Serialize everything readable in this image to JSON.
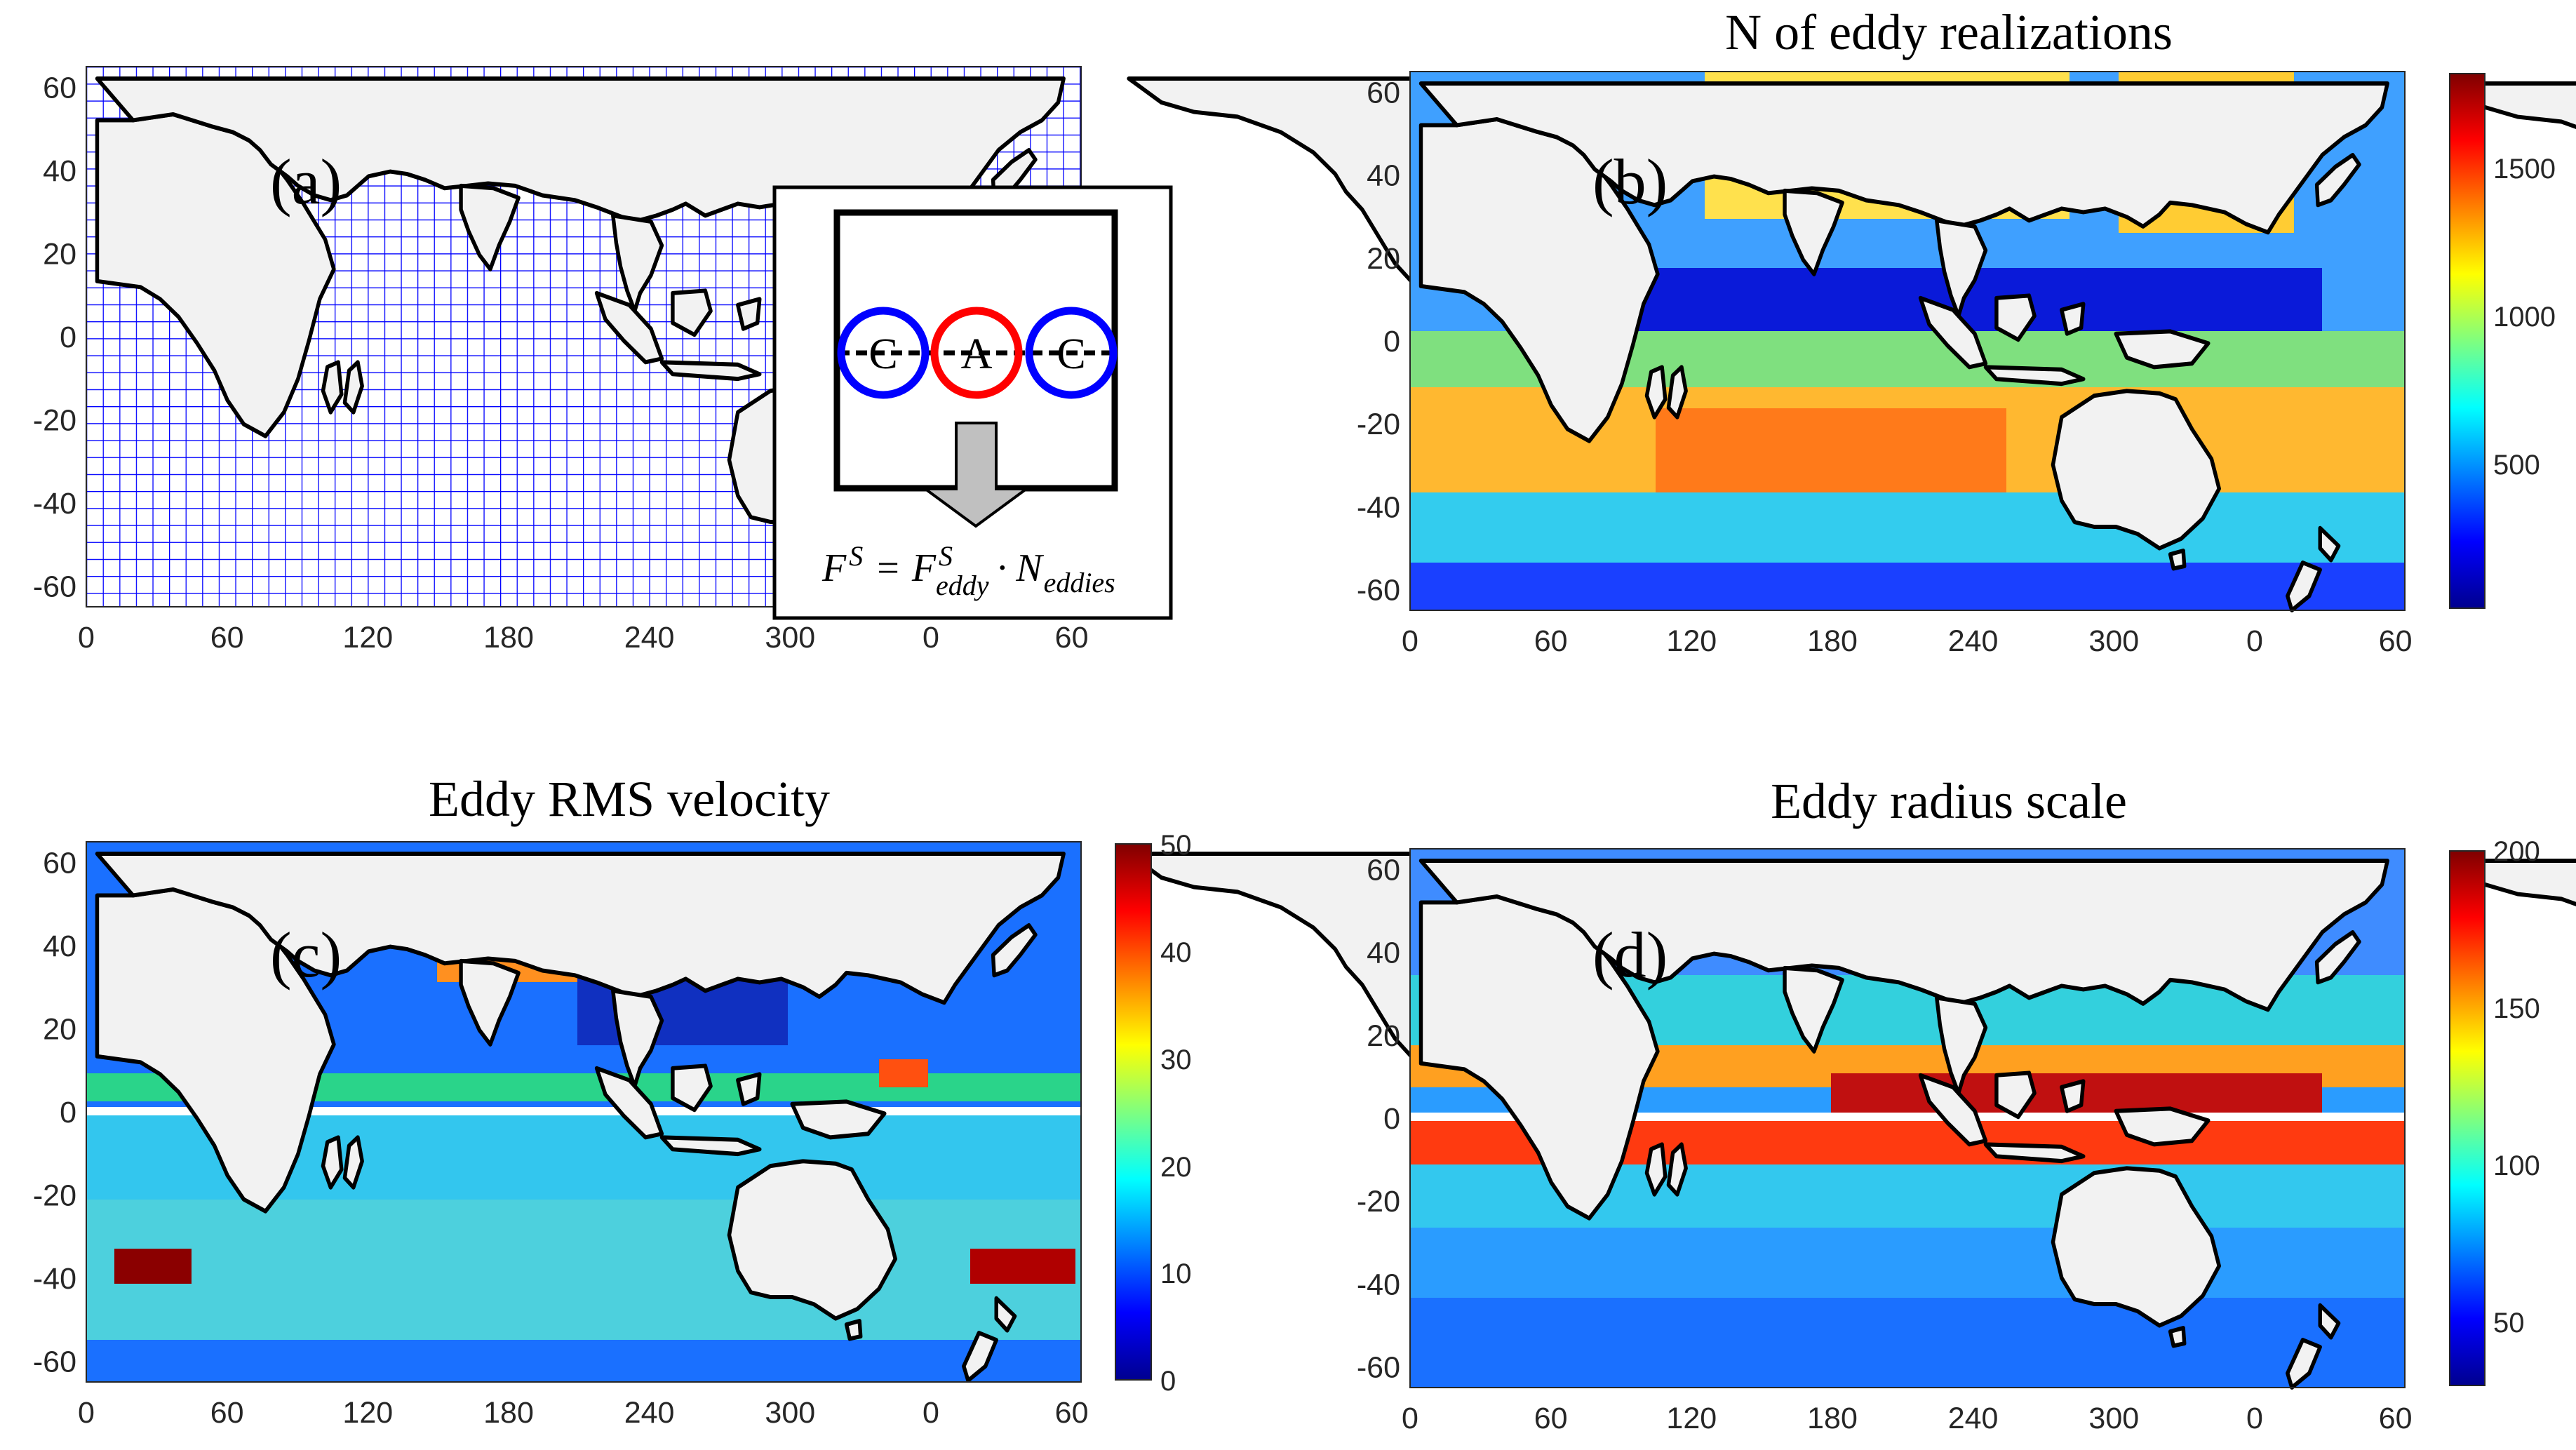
{
  "figure": {
    "xticks": [
      "0",
      "60",
      "120",
      "180",
      "240",
      "300",
      "0",
      "60"
    ],
    "yticks": [
      "60",
      "40",
      "20",
      "0",
      "-20",
      "-40",
      "-60"
    ],
    "colors": {
      "land": "#f2f2f2",
      "grid": "#0000ff",
      "cyclone": "#0000ff",
      "anticyclone": "#ff0000",
      "arrow": "#c0c0c0"
    }
  },
  "panels": {
    "a": {
      "label": "(a)",
      "inset": {
        "eddies": [
          "C",
          "A",
          "C"
        ],
        "formula": {
          "lhs": "F",
          "lhs_sup": "S",
          "eq": "=",
          "term": "F",
          "term_sup": "S",
          "term_sub": "eddy",
          "dot": "·",
          "n": "N",
          "n_sub": "eddies"
        }
      }
    },
    "b": {
      "label": "(b)",
      "title": "N of eddy realizations",
      "colorbar": {
        "ticks": [
          "500",
          "1000",
          "1500"
        ],
        "range": [
          0,
          1800
        ]
      }
    },
    "c": {
      "label": "(c)",
      "title": "Eddy RMS velocity",
      "colorbar": {
        "ticks": [
          "0",
          "10",
          "20",
          "30",
          "40",
          "50"
        ],
        "range": [
          0,
          50
        ]
      }
    },
    "d": {
      "label": "(d)",
      "title": "Eddy radius scale",
      "colorbar": {
        "ticks": [
          "50",
          "100",
          "150",
          "200"
        ],
        "range": [
          30,
          200
        ]
      }
    }
  }
}
